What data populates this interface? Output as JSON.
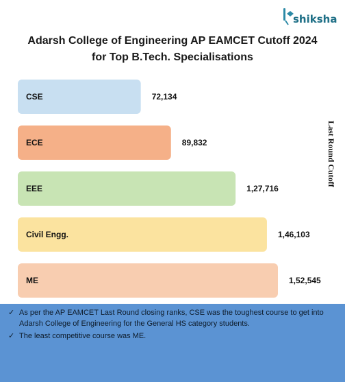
{
  "brand": {
    "name": "shiksha"
  },
  "header": {
    "title_line1": "Adarsh College of Engineering AP EAMCET Cutoff 2024",
    "title_line2": "for Top B.Tech. Specialisations"
  },
  "chart_data": {
    "type": "bar",
    "orientation": "horizontal",
    "categories": [
      "CSE",
      "ECE",
      "EEE",
      "Civil Engg.",
      "ME"
    ],
    "values": [
      72134,
      89832,
      127716,
      146103,
      152545
    ],
    "value_labels": [
      "72,134",
      "89,832",
      "1,27,716",
      "1,46,103",
      "1,52,545"
    ],
    "colors": [
      "#c8dff1",
      "#f5b088",
      "#c8e4b4",
      "#fbe39f",
      "#f8cdb0"
    ],
    "ylabel": "Last Round Cutoff",
    "grid": false,
    "legend": "none"
  },
  "notes": [
    "As per the AP EAMCET Last Round closing ranks, CSE was the toughest course to get into Adarsh College of Engineering for the General HS category students.",
    "The least competitive course was ME."
  ],
  "colors": {
    "footer_bg": "#5b93d3",
    "brand": "#1e6f86"
  }
}
